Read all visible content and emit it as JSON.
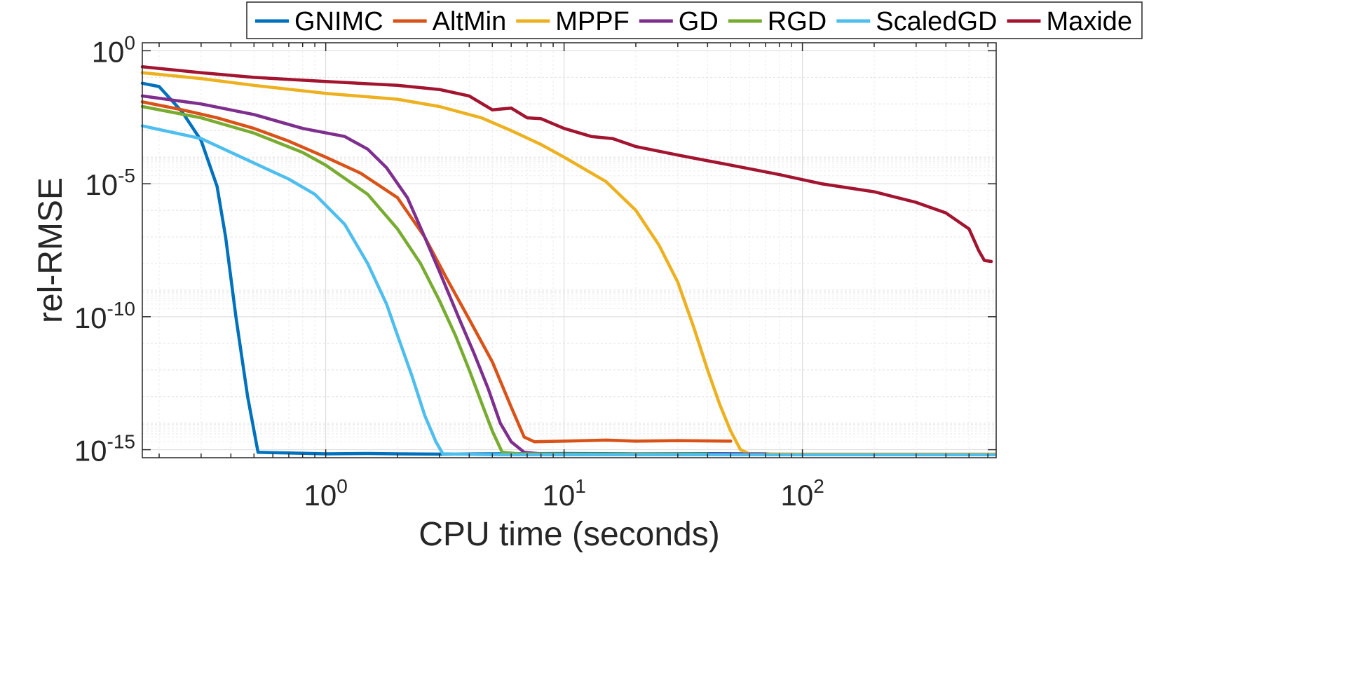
{
  "chart_data": {
    "type": "line",
    "title": "",
    "xlabel": "CPU time (seconds)",
    "ylabel": "rel-RMSE",
    "xscale": "log",
    "yscale": "log",
    "xlim": [
      0.17,
      650
    ],
    "ylim": [
      5e-16,
      2
    ],
    "grid": true,
    "legend_position": "top",
    "x_ticks": [
      {
        "value": 1,
        "base": "10",
        "exp": "0"
      },
      {
        "value": 10,
        "base": "10",
        "exp": "1"
      },
      {
        "value": 100,
        "base": "10",
        "exp": "2"
      }
    ],
    "y_ticks": [
      {
        "value": 1,
        "base": "10",
        "exp": "0"
      },
      {
        "value": 1e-05,
        "base": "10",
        "exp": "-5"
      },
      {
        "value": 1e-10,
        "base": "10",
        "exp": "-10"
      },
      {
        "value": 1e-15,
        "base": "10",
        "exp": "-15"
      }
    ],
    "series": [
      {
        "name": "GNIMC",
        "color": "#0072BD",
        "points": [
          [
            0.17,
            0.06
          ],
          [
            0.2,
            0.045
          ],
          [
            0.25,
            0.005
          ],
          [
            0.3,
            0.00042
          ],
          [
            0.35,
            8e-06
          ],
          [
            0.38,
            1e-07
          ],
          [
            0.42,
            1e-10
          ],
          [
            0.47,
            1e-13
          ],
          [
            0.52,
            8e-16
          ],
          [
            0.7,
            7.5e-16
          ],
          [
            1.0,
            7e-16
          ],
          [
            1.5,
            7.2e-16
          ],
          [
            2.0,
            7e-16
          ],
          [
            3.0,
            6.8e-16
          ],
          [
            5.0,
            7e-16
          ],
          [
            10.0,
            7.2e-16
          ],
          [
            20.0,
            7e-16
          ],
          [
            40.0,
            7.1e-16
          ],
          [
            72.0,
            7e-16
          ]
        ]
      },
      {
        "name": "AltMin",
        "color": "#D95319",
        "points": [
          [
            0.17,
            0.012
          ],
          [
            0.25,
            0.006
          ],
          [
            0.35,
            0.003
          ],
          [
            0.5,
            0.0012
          ],
          [
            0.7,
            0.0004
          ],
          [
            1.0,
            0.0001
          ],
          [
            1.4,
            2.5e-05
          ],
          [
            2.0,
            3e-06
          ],
          [
            2.6,
            1e-07
          ],
          [
            3.2,
            3e-09
          ],
          [
            4.0,
            8e-11
          ],
          [
            5.0,
            2e-12
          ],
          [
            6.0,
            4e-14
          ],
          [
            6.8,
            3e-15
          ],
          [
            7.5,
            2e-15
          ],
          [
            10.0,
            2.1e-15
          ],
          [
            15.0,
            2.3e-15
          ],
          [
            20.0,
            2.1e-15
          ],
          [
            30.0,
            2.2e-15
          ],
          [
            50.0,
            2.1e-15
          ]
        ]
      },
      {
        "name": "MPPF",
        "color": "#EDB120",
        "points": [
          [
            0.17,
            0.15
          ],
          [
            0.3,
            0.09
          ],
          [
            0.5,
            0.05
          ],
          [
            1.0,
            0.025
          ],
          [
            2.0,
            0.015
          ],
          [
            3.0,
            0.008
          ],
          [
            4.5,
            0.003
          ],
          [
            6.0,
            0.001
          ],
          [
            8.0,
            0.0003
          ],
          [
            10.0,
            0.0001
          ],
          [
            15.0,
            1.2e-05
          ],
          [
            20.0,
            1e-06
          ],
          [
            25.0,
            5e-08
          ],
          [
            30.0,
            2e-09
          ],
          [
            35.0,
            4e-11
          ],
          [
            40.0,
            1e-12
          ],
          [
            45.0,
            5e-14
          ],
          [
            50.0,
            5e-15
          ],
          [
            55.0,
            1e-15
          ],
          [
            60.0,
            7e-16
          ],
          [
            100.0,
            6.8e-16
          ],
          [
            200.0,
            6.8e-16
          ],
          [
            400.0,
            6.8e-16
          ],
          [
            640.0,
            6.8e-16
          ]
        ]
      },
      {
        "name": "GD",
        "color": "#7E2F8E",
        "points": [
          [
            0.17,
            0.02
          ],
          [
            0.3,
            0.01
          ],
          [
            0.5,
            0.004
          ],
          [
            0.8,
            0.0012
          ],
          [
            1.2,
            0.0006
          ],
          [
            1.5,
            0.0002
          ],
          [
            1.8,
            4e-05
          ],
          [
            2.2,
            3e-06
          ],
          [
            2.6,
            1e-07
          ],
          [
            3.0,
            5e-09
          ],
          [
            3.6,
            1e-10
          ],
          [
            4.2,
            4e-12
          ],
          [
            4.8,
            2e-13
          ],
          [
            5.4,
            1e-14
          ],
          [
            6.0,
            2e-15
          ],
          [
            6.8,
            8e-16
          ],
          [
            8.0,
            7e-16
          ],
          [
            12.0,
            6.8e-16
          ],
          [
            20.0,
            6.8e-16
          ],
          [
            40.0,
            6.8e-16
          ],
          [
            70.0,
            6.8e-16
          ]
        ]
      },
      {
        "name": "RGD",
        "color": "#77AC30",
        "points": [
          [
            0.17,
            0.008
          ],
          [
            0.3,
            0.003
          ],
          [
            0.5,
            0.0008
          ],
          [
            0.8,
            0.00015
          ],
          [
            1.0,
            5e-05
          ],
          [
            1.5,
            4e-06
          ],
          [
            2.0,
            2e-07
          ],
          [
            2.5,
            1e-08
          ],
          [
            3.0,
            4e-10
          ],
          [
            3.5,
            2e-11
          ],
          [
            4.0,
            1e-12
          ],
          [
            4.5,
            6e-14
          ],
          [
            5.0,
            5e-15
          ],
          [
            5.5,
            8e-16
          ],
          [
            6.5,
            7e-16
          ],
          [
            10.0,
            6.8e-16
          ],
          [
            20.0,
            6.8e-16
          ],
          [
            40.0,
            6.8e-16
          ]
        ]
      },
      {
        "name": "ScaledGD",
        "color": "#4DBEEE",
        "points": [
          [
            0.17,
            0.0015
          ],
          [
            0.3,
            0.0005
          ],
          [
            0.5,
            6e-05
          ],
          [
            0.7,
            1.5e-05
          ],
          [
            0.9,
            4e-06
          ],
          [
            1.2,
            3e-07
          ],
          [
            1.5,
            1e-08
          ],
          [
            1.8,
            3e-10
          ],
          [
            2.0,
            2e-11
          ],
          [
            2.3,
            6e-13
          ],
          [
            2.6,
            2e-14
          ],
          [
            2.9,
            2e-15
          ],
          [
            3.1,
            7e-16
          ],
          [
            5.0,
            6.5e-16
          ],
          [
            10.0,
            6.5e-16
          ],
          [
            50.0,
            6.5e-16
          ],
          [
            200.0,
            6.5e-16
          ],
          [
            640.0,
            6.5e-16
          ]
        ]
      },
      {
        "name": "Maxide",
        "color": "#A2142F",
        "points": [
          [
            0.17,
            0.25
          ],
          [
            0.3,
            0.15
          ],
          [
            0.5,
            0.1
          ],
          [
            1.0,
            0.07
          ],
          [
            2.0,
            0.05
          ],
          [
            3.0,
            0.035
          ],
          [
            4.0,
            0.02
          ],
          [
            5.0,
            0.006
          ],
          [
            5.5,
            0.0065
          ],
          [
            6.0,
            0.007
          ],
          [
            7.0,
            0.003
          ],
          [
            8.0,
            0.0028
          ],
          [
            10.0,
            0.0012
          ],
          [
            13.0,
            0.0006
          ],
          [
            16.0,
            0.0005
          ],
          [
            20.0,
            0.00025
          ],
          [
            30.0,
            0.00012
          ],
          [
            50.0,
            5e-05
          ],
          [
            80.0,
            2.2e-05
          ],
          [
            120.0,
            1e-05
          ],
          [
            200.0,
            5e-06
          ],
          [
            300.0,
            2e-06
          ],
          [
            400.0,
            8e-07
          ],
          [
            500.0,
            2e-07
          ],
          [
            550.0,
            3e-08
          ],
          [
            580.0,
            1.3e-08
          ],
          [
            620.0,
            1.2e-08
          ]
        ]
      }
    ]
  }
}
